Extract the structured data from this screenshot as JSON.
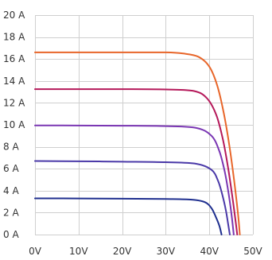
{
  "chart_data": {
    "type": "line",
    "title": "",
    "xlabel": "",
    "ylabel": "",
    "xlim": [
      0,
      50
    ],
    "ylim": [
      0,
      20
    ],
    "grid": true,
    "x_ticks": [
      0,
      10,
      20,
      30,
      40,
      50
    ],
    "x_tick_labels": [
      "0V",
      "10V",
      "20V",
      "30V",
      "40V",
      "50V"
    ],
    "y_ticks": [
      0,
      2,
      4,
      6,
      8,
      10,
      12,
      14,
      16,
      18,
      20
    ],
    "y_tick_labels": [
      "0 A",
      "2 A",
      "4 A",
      "6 A",
      "8 A",
      "10 A",
      "12 A",
      "14 A",
      "16 A",
      "18 A",
      "20 A"
    ],
    "series": [
      {
        "color": "#1f2f8f",
        "points": [
          [
            0,
            3.3
          ],
          [
            10,
            3.29
          ],
          [
            20,
            3.27
          ],
          [
            30,
            3.24
          ],
          [
            36,
            3.18
          ],
          [
            39,
            2.95
          ],
          [
            40.5,
            2.4
          ],
          [
            41.5,
            1.6
          ],
          [
            42.3,
            0.8
          ],
          [
            42.8,
            0
          ]
        ]
      },
      {
        "color": "#4a39a8",
        "points": [
          [
            0,
            6.7
          ],
          [
            10,
            6.68
          ],
          [
            20,
            6.64
          ],
          [
            30,
            6.59
          ],
          [
            37,
            6.45
          ],
          [
            40.5,
            5.9
          ],
          [
            42,
            4.9
          ],
          [
            43,
            3.6
          ],
          [
            43.8,
            2.2
          ],
          [
            44.3,
            1.0
          ],
          [
            44.7,
            0
          ]
        ]
      },
      {
        "color": "#7a36b3",
        "points": [
          [
            0,
            9.95
          ],
          [
            10,
            9.94
          ],
          [
            20,
            9.92
          ],
          [
            30,
            9.88
          ],
          [
            37,
            9.72
          ],
          [
            40.5,
            9.0
          ],
          [
            42.3,
            7.6
          ],
          [
            43.5,
            5.8
          ],
          [
            44.4,
            3.8
          ],
          [
            45.1,
            1.8
          ],
          [
            45.6,
            0
          ]
        ]
      },
      {
        "color": "#b5195a",
        "points": [
          [
            0,
            13.25
          ],
          [
            10,
            13.25
          ],
          [
            20,
            13.25
          ],
          [
            30,
            13.22
          ],
          [
            36.5,
            13.08
          ],
          [
            39.5,
            12.4
          ],
          [
            41.6,
            10.9
          ],
          [
            43.1,
            8.7
          ],
          [
            44.3,
            6.1
          ],
          [
            45.3,
            3.4
          ],
          [
            46.1,
            1.0
          ],
          [
            46.4,
            0
          ]
        ]
      },
      {
        "color": "#e8662a",
        "points": [
          [
            0,
            16.6
          ],
          [
            10,
            16.6
          ],
          [
            20,
            16.6
          ],
          [
            30,
            16.6
          ],
          [
            34,
            16.5
          ],
          [
            37.5,
            16.2
          ],
          [
            40,
            15.3
          ],
          [
            41.8,
            13.6
          ],
          [
            43.3,
            11.1
          ],
          [
            44.6,
            8.1
          ],
          [
            45.7,
            4.9
          ],
          [
            46.6,
            1.8
          ],
          [
            47,
            0
          ]
        ]
      }
    ]
  }
}
